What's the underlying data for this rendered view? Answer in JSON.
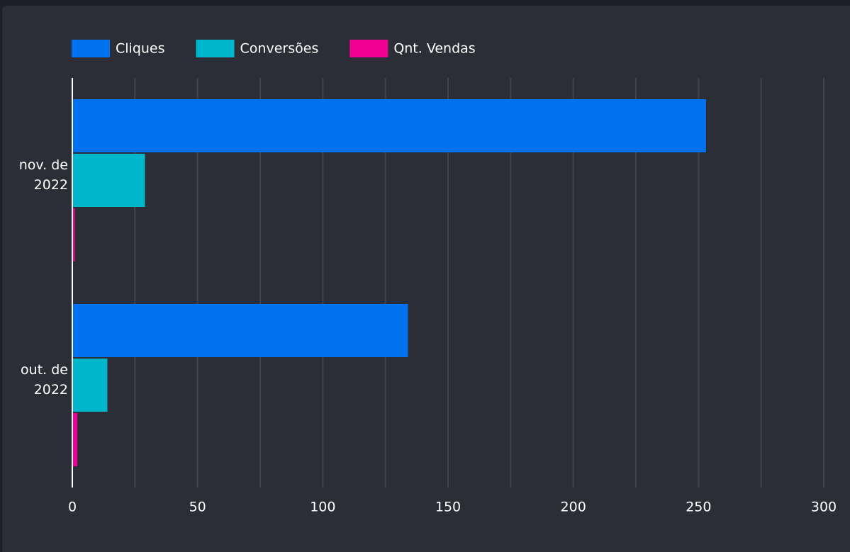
{
  "chart_data": {
    "type": "bar",
    "orientation": "horizontal",
    "categories": [
      "nov. de 2022",
      "out. de 2022"
    ],
    "series": [
      {
        "name": "Cliques",
        "color": "#0072f0",
        "values": [
          253,
          134
        ]
      },
      {
        "name": "Conversões",
        "color": "#00b6cb",
        "values": [
          29,
          14
        ]
      },
      {
        "name": "Qnt. Vendas",
        "color": "#f10096",
        "values": [
          1,
          2
        ]
      }
    ],
    "xlim": [
      0,
      300
    ],
    "xticks": [
      0,
      50,
      100,
      150,
      200,
      250,
      300
    ],
    "xminor": [
      25,
      75,
      125,
      175,
      225,
      275
    ],
    "grid": true,
    "legend": "top"
  }
}
